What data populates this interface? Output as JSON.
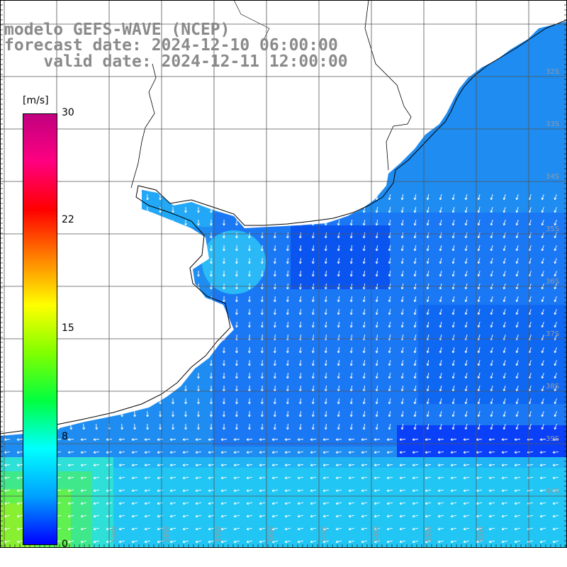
{
  "header": {
    "line1": "modelo GEFS-WAVE (NCEP)",
    "line2": "forecast date: 2024-12-10 06:00:00",
    "line3": "    valid date: 2024-12-11 12:00:00"
  },
  "colorbar": {
    "unit": "[m/s]",
    "ticks": [
      "30",
      "22",
      "15",
      "8",
      "0"
    ],
    "tick_values": [
      30,
      22,
      15,
      8,
      0
    ],
    "min": 0,
    "max": 30,
    "colors": [
      "#0000ff",
      "#00a0ff",
      "#00ffff",
      "#00ff40",
      "#80ff00",
      "#ffff00",
      "#ff8000",
      "#ff0000",
      "#ff0080",
      "#c0007f"
    ]
  },
  "map": {
    "latitude_labels": [
      "32S",
      "33S",
      "34S",
      "35S",
      "36S",
      "37S",
      "38S",
      "39S",
      "40S",
      "41S"
    ],
    "longitude_labels": [
      "59W",
      "58W",
      "57W",
      "56W",
      "55W",
      "54W",
      "53W",
      "52W"
    ],
    "land_color": "#ffffff",
    "coast_color": "#000000",
    "arrow_color": "#ffffff",
    "grid_color": "#555555"
  }
}
